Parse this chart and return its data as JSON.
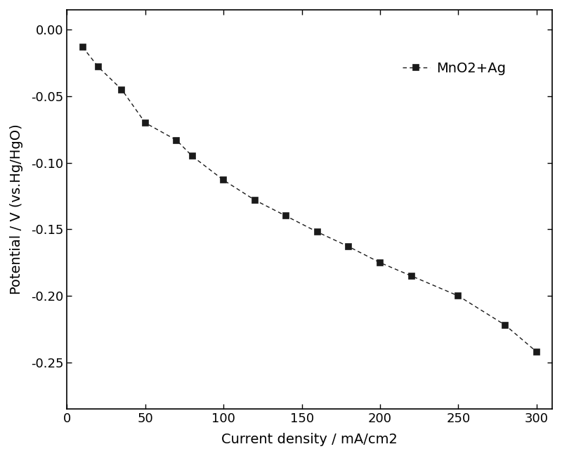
{
  "x": [
    10,
    20,
    35,
    50,
    70,
    80,
    100,
    120,
    140,
    160,
    180,
    200,
    220,
    250,
    280,
    300
  ],
  "y": [
    -0.013,
    -0.028,
    -0.045,
    -0.07,
    -0.083,
    -0.095,
    -0.113,
    -0.128,
    -0.14,
    -0.152,
    -0.163,
    -0.175,
    -0.185,
    -0.2,
    -0.222,
    -0.242
  ],
  "label": "MnO2+Ag",
  "xlabel": "Current density / mA/cm2",
  "ylabel": "Potential / V (vs.Hg/HgO)",
  "xlim": [
    0,
    310
  ],
  "ylim": [
    -0.285,
    0.015
  ],
  "xticks": [
    0,
    50,
    100,
    150,
    200,
    250,
    300
  ],
  "yticks": [
    0.0,
    -0.05,
    -0.1,
    -0.15,
    -0.2,
    -0.25
  ],
  "line_color": "#1a1a1a",
  "marker": "s",
  "marker_size": 6,
  "marker_facecolor": "#1a1a1a",
  "line_style": "--",
  "line_width": 1.0,
  "font_size": 14,
  "tick_font_size": 13,
  "label_font_size": 14
}
